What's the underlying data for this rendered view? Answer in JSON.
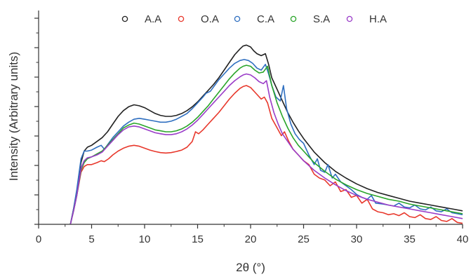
{
  "chart_data": {
    "type": "line",
    "title": "",
    "xlabel": "2θ (°)",
    "ylabel": "Intensity (Arbitrary units)",
    "xlim": [
      0,
      40
    ],
    "ylim": [
      0,
      1.0
    ],
    "x_ticks": [
      0,
      5,
      10,
      15,
      20,
      25,
      30,
      35,
      40
    ],
    "x_tick_labels": [
      "0",
      "5",
      "10",
      "15",
      "20",
      "25",
      "30",
      "35",
      "40"
    ],
    "y_tick_labels_shown": false,
    "grid": false,
    "legend_position": "top-center",
    "legend_marker": "open-circle",
    "series": [
      {
        "name": "A.A",
        "color": "#222222",
        "x": [
          3.0,
          3.3,
          3.6,
          4.0,
          4.3,
          4.6,
          5.0,
          5.5,
          6.0,
          6.5,
          7.0,
          7.5,
          8.0,
          8.5,
          9.0,
          9.5,
          10.0,
          10.5,
          11.0,
          11.5,
          12.0,
          12.5,
          13.0,
          13.5,
          14.0,
          14.5,
          15.0,
          15.5,
          16.0,
          16.5,
          17.0,
          17.5,
          18.0,
          18.5,
          19.0,
          19.3,
          19.6,
          20.0,
          20.3,
          20.6,
          21.0,
          21.4,
          21.7,
          22.0,
          22.5,
          23.0,
          23.5,
          24.0,
          24.5,
          25.0,
          25.5,
          26.0,
          27.0,
          28.0,
          29.0,
          30.0,
          31.0,
          32.0,
          33.0,
          34.0,
          35.0,
          36.0,
          37.0,
          38.0,
          39.0,
          40.0
        ],
        "y": [
          0.0,
          0.08,
          0.17,
          0.32,
          0.38,
          0.4,
          0.41,
          0.43,
          0.45,
          0.48,
          0.52,
          0.56,
          0.59,
          0.61,
          0.62,
          0.615,
          0.605,
          0.59,
          0.575,
          0.565,
          0.56,
          0.56,
          0.565,
          0.575,
          0.59,
          0.61,
          0.635,
          0.665,
          0.695,
          0.725,
          0.76,
          0.8,
          0.84,
          0.88,
          0.91,
          0.925,
          0.93,
          0.92,
          0.9,
          0.885,
          0.875,
          0.885,
          0.83,
          0.76,
          0.7,
          0.64,
          0.58,
          0.53,
          0.485,
          0.445,
          0.41,
          0.375,
          0.32,
          0.275,
          0.24,
          0.21,
          0.185,
          0.165,
          0.15,
          0.135,
          0.12,
          0.11,
          0.1,
          0.09,
          0.08,
          0.07
        ]
      },
      {
        "name": "O.A",
        "color": "#e8382c",
        "x": [
          3.0,
          3.3,
          3.6,
          4.0,
          4.3,
          4.6,
          5.0,
          5.5,
          5.9,
          6.2,
          6.6,
          7.0,
          7.5,
          8.0,
          8.5,
          9.0,
          9.5,
          10.0,
          10.5,
          11.0,
          11.5,
          12.0,
          12.5,
          13.0,
          13.5,
          14.0,
          14.5,
          14.8,
          15.1,
          15.5,
          16.0,
          16.5,
          17.0,
          17.5,
          18.0,
          18.5,
          19.0,
          19.3,
          19.6,
          20.0,
          20.5,
          21.0,
          21.3,
          21.6,
          22.0,
          22.5,
          22.9,
          23.2,
          23.6,
          24.0,
          24.5,
          25.0,
          25.5,
          26.0,
          26.5,
          27.0,
          27.5,
          28.0,
          28.5,
          29.0,
          29.5,
          30.0,
          30.5,
          31.0,
          31.5,
          32.0,
          32.5,
          33.0,
          33.5,
          34.0,
          34.5,
          35.0,
          35.5,
          36.0,
          36.5,
          37.0,
          37.5,
          38.0,
          38.5,
          39.0,
          39.5,
          40.0
        ],
        "y": [
          0.0,
          0.07,
          0.15,
          0.27,
          0.3,
          0.31,
          0.31,
          0.32,
          0.33,
          0.325,
          0.34,
          0.36,
          0.38,
          0.395,
          0.405,
          0.41,
          0.405,
          0.395,
          0.385,
          0.378,
          0.372,
          0.37,
          0.372,
          0.378,
          0.385,
          0.4,
          0.43,
          0.48,
          0.47,
          0.49,
          0.52,
          0.55,
          0.58,
          0.615,
          0.65,
          0.68,
          0.705,
          0.715,
          0.72,
          0.71,
          0.68,
          0.65,
          0.66,
          0.63,
          0.55,
          0.5,
          0.46,
          0.48,
          0.43,
          0.39,
          0.36,
          0.33,
          0.31,
          0.26,
          0.24,
          0.23,
          0.2,
          0.22,
          0.17,
          0.18,
          0.14,
          0.15,
          0.11,
          0.13,
          0.08,
          0.065,
          0.06,
          0.05,
          0.055,
          0.045,
          0.06,
          0.04,
          0.035,
          0.05,
          0.03,
          0.025,
          0.04,
          0.02,
          0.015,
          0.03,
          0.01,
          0.005
        ]
      },
      {
        "name": "C.A",
        "color": "#2f6fc0",
        "x": [
          3.0,
          3.3,
          3.6,
          4.0,
          4.3,
          4.6,
          5.0,
          5.5,
          5.9,
          6.2,
          6.6,
          7.0,
          7.5,
          8.0,
          8.5,
          9.0,
          9.5,
          10.0,
          10.5,
          11.0,
          11.5,
          12.0,
          12.5,
          13.0,
          13.5,
          14.0,
          14.5,
          15.0,
          15.5,
          15.8,
          16.2,
          16.6,
          17.0,
          17.5,
          18.0,
          18.5,
          19.0,
          19.4,
          19.8,
          20.2,
          20.6,
          21.0,
          21.4,
          21.7,
          22.0,
          22.4,
          22.8,
          23.1,
          23.4,
          23.8,
          24.2,
          24.6,
          25.0,
          25.5,
          26.0,
          26.3,
          26.6,
          27.0,
          27.3,
          27.7,
          28.0,
          28.5,
          29.0,
          29.5,
          30.0,
          30.5,
          31.0,
          31.4,
          31.8,
          32.5,
          33.0,
          33.5,
          34.0,
          34.5,
          35.0,
          35.5,
          36.0,
          36.5,
          37.0,
          37.5,
          38.0,
          38.5,
          39.0,
          39.5,
          40.0
        ],
        "y": [
          0.0,
          0.08,
          0.18,
          0.34,
          0.38,
          0.38,
          0.385,
          0.4,
          0.41,
          0.39,
          0.42,
          0.45,
          0.48,
          0.51,
          0.53,
          0.545,
          0.55,
          0.545,
          0.54,
          0.535,
          0.53,
          0.53,
          0.535,
          0.545,
          0.56,
          0.575,
          0.6,
          0.63,
          0.66,
          0.68,
          0.69,
          0.72,
          0.75,
          0.78,
          0.81,
          0.835,
          0.85,
          0.855,
          0.85,
          0.835,
          0.81,
          0.8,
          0.83,
          0.78,
          0.72,
          0.66,
          0.64,
          0.72,
          0.6,
          0.52,
          0.47,
          0.44,
          0.42,
          0.36,
          0.31,
          0.34,
          0.28,
          0.27,
          0.31,
          0.24,
          0.26,
          0.22,
          0.2,
          0.18,
          0.155,
          0.14,
          0.13,
          0.15,
          0.11,
          0.105,
          0.1,
          0.095,
          0.11,
          0.09,
          0.085,
          0.1,
          0.08,
          0.075,
          0.09,
          0.07,
          0.065,
          0.08,
          0.06,
          0.055,
          0.05
        ]
      },
      {
        "name": "S.A",
        "color": "#2aa52a",
        "x": [
          3.0,
          3.3,
          3.6,
          4.0,
          4.3,
          4.6,
          5.0,
          5.5,
          6.0,
          6.5,
          7.0,
          7.5,
          8.0,
          8.5,
          9.0,
          9.5,
          10.0,
          10.5,
          11.0,
          11.5,
          12.0,
          12.5,
          13.0,
          13.5,
          14.0,
          14.5,
          15.0,
          15.5,
          16.0,
          16.5,
          17.0,
          17.5,
          18.0,
          18.5,
          19.0,
          19.3,
          19.6,
          20.0,
          20.4,
          20.8,
          21.2,
          21.6,
          22.0,
          22.5,
          23.0,
          23.5,
          24.0,
          24.5,
          25.0,
          25.5,
          26.0,
          27.0,
          28.0,
          29.0,
          30.0,
          31.0,
          32.0,
          33.0,
          34.0,
          35.0,
          36.0,
          37.0,
          38.0,
          39.0,
          40.0
        ],
        "y": [
          0.0,
          0.07,
          0.15,
          0.28,
          0.32,
          0.34,
          0.35,
          0.365,
          0.38,
          0.41,
          0.44,
          0.47,
          0.5,
          0.515,
          0.525,
          0.52,
          0.51,
          0.5,
          0.49,
          0.485,
          0.48,
          0.48,
          0.485,
          0.495,
          0.51,
          0.53,
          0.555,
          0.585,
          0.615,
          0.65,
          0.685,
          0.72,
          0.755,
          0.785,
          0.81,
          0.82,
          0.825,
          0.82,
          0.8,
          0.785,
          0.79,
          0.82,
          0.72,
          0.63,
          0.56,
          0.5,
          0.45,
          0.41,
          0.38,
          0.35,
          0.32,
          0.275,
          0.235,
          0.205,
          0.18,
          0.16,
          0.145,
          0.13,
          0.12,
          0.105,
          0.095,
          0.085,
          0.075,
          0.065,
          0.055
        ]
      },
      {
        "name": "H.A",
        "color": "#9a3cc8",
        "x": [
          3.0,
          3.3,
          3.6,
          4.0,
          4.3,
          4.6,
          5.0,
          5.5,
          6.0,
          6.5,
          7.0,
          7.5,
          8.0,
          8.5,
          9.0,
          9.5,
          10.0,
          10.5,
          11.0,
          11.5,
          12.0,
          12.5,
          13.0,
          13.5,
          14.0,
          14.5,
          15.0,
          15.5,
          16.0,
          16.5,
          17.0,
          17.5,
          18.0,
          18.5,
          19.0,
          19.3,
          19.6,
          20.0,
          20.4,
          20.8,
          21.2,
          21.5,
          21.8,
          22.2,
          22.6,
          23.0,
          23.5,
          24.0,
          24.5,
          25.0,
          25.5,
          26.0,
          27.0,
          28.0,
          29.0,
          30.0,
          31.0,
          32.0,
          33.0,
          34.0,
          35.0,
          36.0,
          37.0,
          38.0,
          39.0,
          40.0
        ],
        "y": [
          0.0,
          0.07,
          0.15,
          0.29,
          0.33,
          0.345,
          0.35,
          0.36,
          0.375,
          0.405,
          0.435,
          0.465,
          0.49,
          0.505,
          0.51,
          0.505,
          0.495,
          0.485,
          0.475,
          0.47,
          0.465,
          0.465,
          0.47,
          0.48,
          0.495,
          0.515,
          0.54,
          0.57,
          0.6,
          0.63,
          0.66,
          0.69,
          0.72,
          0.745,
          0.765,
          0.775,
          0.78,
          0.775,
          0.76,
          0.74,
          0.73,
          0.745,
          0.66,
          0.58,
          0.52,
          0.47,
          0.43,
          0.39,
          0.36,
          0.33,
          0.305,
          0.28,
          0.24,
          0.205,
          0.175,
          0.15,
          0.13,
          0.115,
          0.1,
          0.09,
          0.08,
          0.07,
          0.06,
          0.05,
          0.04,
          0.03
        ]
      }
    ]
  }
}
